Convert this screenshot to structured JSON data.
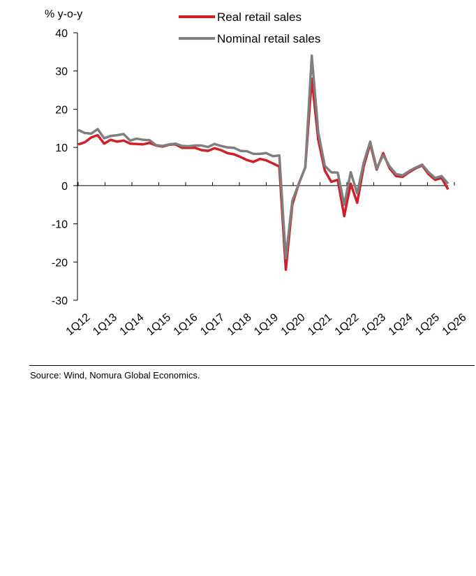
{
  "chart_data": {
    "type": "line",
    "ylabel": "% y-o-y",
    "ylim": [
      -30,
      40
    ],
    "yticks": [
      40,
      30,
      20,
      10,
      0,
      -10,
      -20,
      -30
    ],
    "xticks": [
      "1Q12",
      "1Q13",
      "1Q14",
      "1Q15",
      "1Q16",
      "1Q17",
      "1Q18",
      "1Q19",
      "1Q20",
      "1Q21",
      "1Q22",
      "1Q23",
      "1Q24",
      "1Q25",
      "1Q26"
    ],
    "legend_position": "top",
    "grid": false,
    "series": [
      {
        "name": "Real retail sales",
        "color": "#d11f27",
        "values": [
          10.8,
          11.3,
          12.6,
          13.2,
          11.0,
          12.0,
          11.5,
          11.8,
          11.0,
          10.9,
          10.8,
          11.2,
          10.5,
          10.2,
          10.7,
          10.8,
          9.9,
          9.9,
          9.9,
          9.3,
          9.1,
          9.8,
          9.3,
          8.5,
          8.2,
          7.5,
          6.7,
          6.2,
          7.0,
          6.6,
          5.8,
          5.0,
          -22.0,
          -5.0,
          0.5,
          4.8,
          28.0,
          12.0,
          4.0,
          1.0,
          1.5,
          -8.0,
          0.5,
          -4.5,
          5.0,
          11.0,
          4.2,
          8.5,
          4.5,
          2.5,
          2.3,
          3.5,
          4.5,
          5.3,
          3.0,
          1.5,
          2.0,
          -1.0
        ]
      },
      {
        "name": "Nominal retail sales",
        "color": "#7f7f7f",
        "values": [
          14.6,
          13.8,
          13.6,
          14.8,
          12.4,
          13.0,
          13.2,
          13.5,
          11.8,
          12.3,
          12.0,
          11.9,
          10.6,
          10.4,
          10.8,
          11.0,
          10.4,
          10.3,
          10.5,
          10.5,
          10.1,
          10.9,
          10.4,
          10.0,
          9.9,
          9.1,
          9.0,
          8.3,
          8.3,
          8.5,
          7.7,
          7.9,
          -19.0,
          -4.0,
          0.5,
          4.8,
          34.0,
          14.0,
          5.2,
          3.5,
          3.4,
          -5.0,
          3.5,
          -2.0,
          6.0,
          11.5,
          4.5,
          8.0,
          5.0,
          3.0,
          2.7,
          3.8,
          4.7,
          5.5,
          3.5,
          2.0,
          2.5,
          0.5
        ]
      }
    ]
  },
  "source_note": "Source: Wind, Nomura Global Economics."
}
